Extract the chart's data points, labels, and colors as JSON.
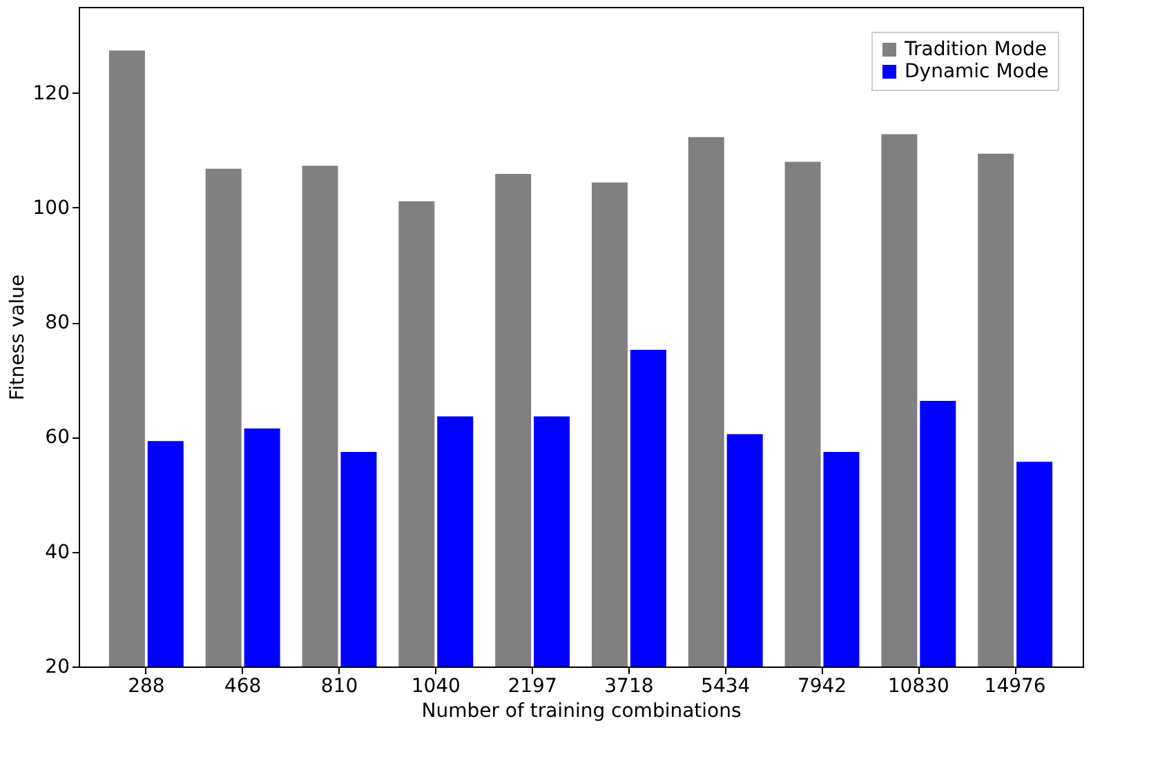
{
  "chart_data": {
    "type": "bar",
    "xlabel": "Number of training combinations",
    "ylabel": "Fitness value",
    "categories": [
      "288",
      "468",
      "810",
      "1040",
      "2197",
      "3718",
      "5434",
      "7942",
      "10830",
      "14976"
    ],
    "series": [
      {
        "name": "Tradition Mode",
        "color": "#808080",
        "values": [
          127.4,
          106.8,
          107.3,
          101.1,
          105.9,
          104.4,
          112.3,
          108.0,
          112.8,
          109.4
        ]
      },
      {
        "name": "Dynamic Mode",
        "color": "#0000ff",
        "values": [
          59.3,
          61.5,
          57.4,
          63.6,
          63.6,
          75.2,
          60.5,
          57.4,
          66.3,
          55.7
        ]
      }
    ],
    "ylim": [
      20,
      135
    ],
    "yticks": [
      20,
      40,
      60,
      80,
      100,
      120
    ],
    "grid": false,
    "legend": "top right"
  }
}
